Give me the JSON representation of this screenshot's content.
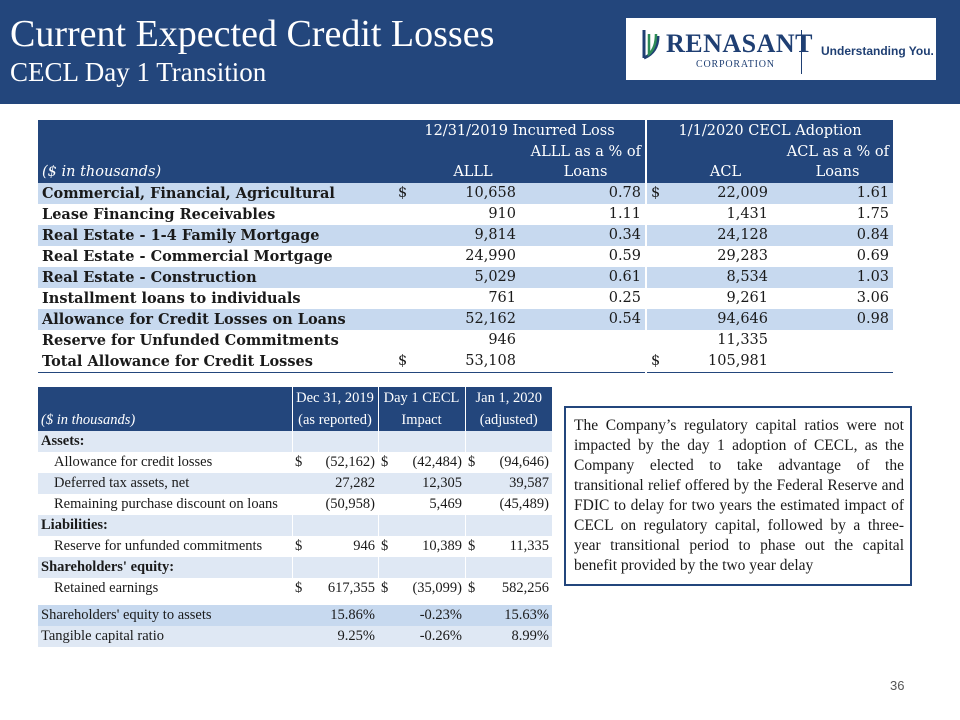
{
  "header": {
    "title": "Current Expected Credit Losses",
    "subtitle": "CECL Day 1 Transition",
    "logo_name": "RENASANT",
    "logo_corp": "CORPORATION",
    "tagline": "Understanding You."
  },
  "table1": {
    "group1": "12/31/2019 Incurred Loss",
    "group2": "1/1/2020 CECL Adoption",
    "unit_label": "($ in thousands)",
    "col_allll": "ALLL",
    "col_allll_pct_top": "ALLL as a % of",
    "col_allll_pct_bot": "Loans",
    "col_acl": "ACL",
    "col_acl_pct_top": "ACL as a % of",
    "col_acl_pct_bot": "Loans",
    "rows": [
      {
        "label": "Commercial, Financial, Agricultural",
        "d1": "$",
        "alll": "10,658",
        "alll_pct": "0.78",
        "d2": "$",
        "acl": "22,009",
        "acl_pct": "1.61"
      },
      {
        "label": "Lease Financing Receivables",
        "d1": "",
        "alll": "910",
        "alll_pct": "1.11",
        "d2": "",
        "acl": "1,431",
        "acl_pct": "1.75"
      },
      {
        "label": "Real Estate - 1-4 Family Mortgage",
        "d1": "",
        "alll": "9,814",
        "alll_pct": "0.34",
        "d2": "",
        "acl": "24,128",
        "acl_pct": "0.84"
      },
      {
        "label": "Real Estate - Commercial Mortgage",
        "d1": "",
        "alll": "24,990",
        "alll_pct": "0.59",
        "d2": "",
        "acl": "29,283",
        "acl_pct": "0.69"
      },
      {
        "label": "Real Estate - Construction",
        "d1": "",
        "alll": "5,029",
        "alll_pct": "0.61",
        "d2": "",
        "acl": "8,534",
        "acl_pct": "1.03"
      },
      {
        "label": "Installment loans to individuals",
        "d1": "",
        "alll": "761",
        "alll_pct": "0.25",
        "d2": "",
        "acl": "9,261",
        "acl_pct": "3.06"
      },
      {
        "label": "Allowance for Credit Losses on Loans",
        "d1": "",
        "alll": "52,162",
        "alll_pct": "0.54",
        "d2": "",
        "acl": "94,646",
        "acl_pct": "0.98"
      },
      {
        "label": "Reserve for Unfunded Commitments",
        "d1": "",
        "alll": "946",
        "alll_pct": "",
        "d2": "",
        "acl": "11,335",
        "acl_pct": ""
      },
      {
        "label": "Total Allowance for Credit Losses",
        "d1": "$",
        "alll": "53,108",
        "alll_pct": "",
        "d2": "$",
        "acl": "105,981",
        "acl_pct": ""
      }
    ]
  },
  "table2": {
    "unit_label": "($ in thousands)",
    "col1_top": "Dec 31, 2019",
    "col1_bot": "(as reported)",
    "col2_top": "Day 1 CECL",
    "col2_bot": "Impact",
    "col3_top": "Jan 1, 2020",
    "col3_bot": "(adjusted)",
    "sec_assets": "Assets:",
    "sec_liabilities": "Liabilities:",
    "sec_equity": "Shareholders' equity:",
    "rows": {
      "allowance": {
        "label": "Allowance for credit losses",
        "d1": "$",
        "v1": "(52,162)",
        "d2": "$",
        "v2": "(42,484)",
        "d3": "$",
        "v3": "(94,646)"
      },
      "deferred": {
        "label": "Deferred tax assets, net",
        "d1": "",
        "v1": "27,282",
        "d2": "",
        "v2": "12,305",
        "d3": "",
        "v3": "39,587"
      },
      "discount": {
        "label": "Remaining purchase discount on loans",
        "d1": "",
        "v1": "(50,958)",
        "d2": "",
        "v2": "5,469",
        "d3": "",
        "v3": "(45,489)"
      },
      "reserve": {
        "label": "Reserve for unfunded commitments",
        "d1": "$",
        "v1": "946",
        "d2": "$",
        "v2": "10,389",
        "d3": "$",
        "v3": "11,335"
      },
      "retained": {
        "label": "Retained earnings",
        "d1": "$",
        "v1": "617,355",
        "d2": "$",
        "v2": "(35,099)",
        "d3": "$",
        "v3": "582,256"
      }
    },
    "ratios": [
      {
        "label": "Shareholders' equity to assets",
        "v1": "15.86%",
        "v2": "-0.23%",
        "v3": "15.63%"
      },
      {
        "label": "Tangible capital ratio",
        "v1": "9.25%",
        "v2": "-0.26%",
        "v3": "8.99%"
      }
    ]
  },
  "note": "The Company’s regulatory capital ratios were not impacted by the day 1 adoption of CECL, as the Company elected to take advantage of the transitional relief offered by the Federal Reserve and FDIC to delay for two years the estimated impact of CECL on regulatory capital, followed by a three-year transitional period to phase out the capital benefit provided by the two year delay",
  "page_number": "36",
  "colors": {
    "navy": "#23467c",
    "band": "#c7d9ef",
    "light_band": "#dfe8f4",
    "logo_green": "#2e8b57"
  }
}
